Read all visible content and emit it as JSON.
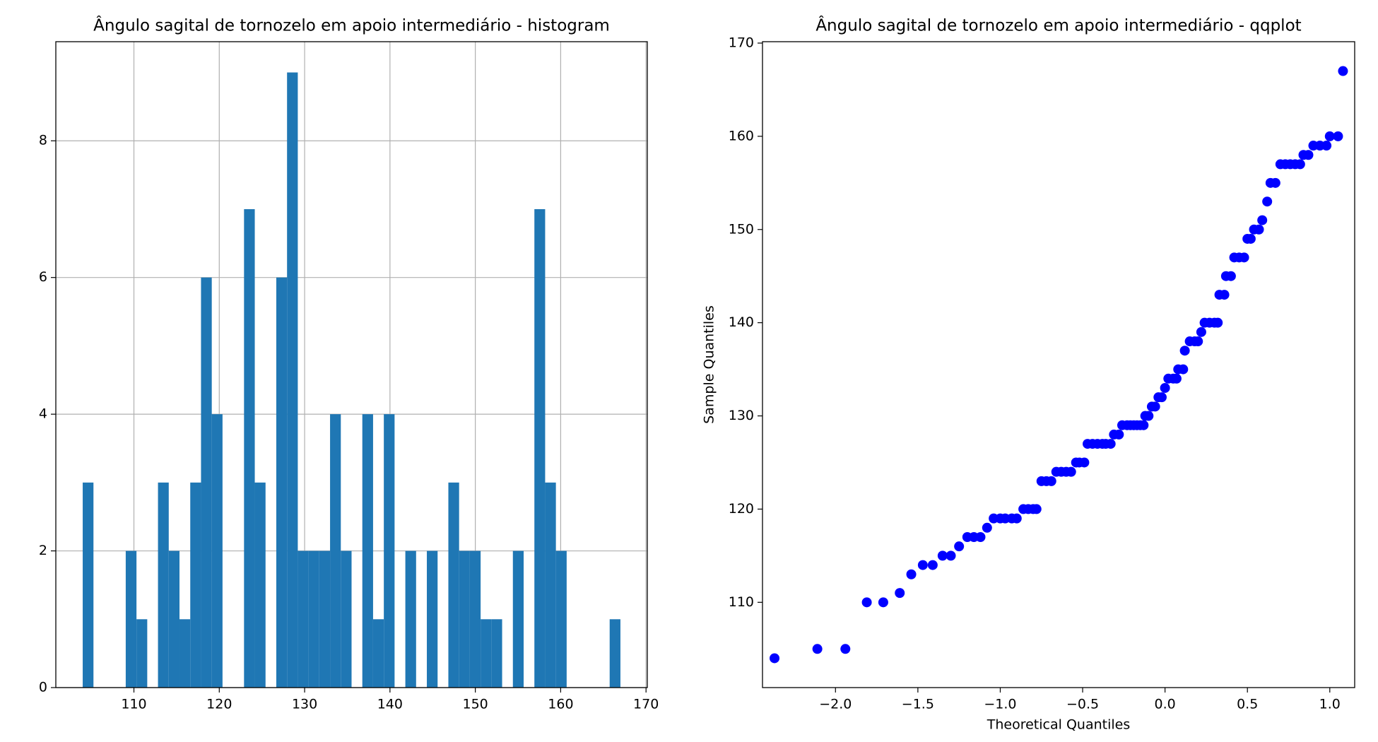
{
  "chart_data": [
    {
      "type": "histogram",
      "title": "Ângulo sagital de tornozelo em apoio intermediário - histogram",
      "bins": [
        104,
        105.26,
        106.52,
        107.78,
        109.04,
        110.3,
        111.56,
        112.82,
        114.08,
        115.34,
        116.6,
        117.86,
        119.12,
        120.38,
        121.64,
        122.9,
        124.16,
        125.42,
        126.68,
        127.94,
        129.2,
        130.46,
        131.72,
        132.98,
        134.24,
        135.5,
        136.76,
        138.02,
        139.28,
        140.54,
        141.8,
        143.06,
        144.32,
        145.58,
        146.84,
        148.1,
        149.36,
        150.62,
        151.88,
        153.14,
        154.4,
        155.66,
        156.92,
        158.18,
        159.44,
        160.7,
        161.96,
        163.22,
        164.48,
        165.74,
        167
      ],
      "values": [
        3,
        0,
        0,
        0,
        2,
        1,
        0,
        3,
        2,
        1,
        3,
        6,
        4,
        0,
        0,
        7,
        3,
        0,
        6,
        9,
        2,
        2,
        2,
        4,
        2,
        0,
        4,
        1,
        4,
        0,
        2,
        0,
        2,
        0,
        3,
        2,
        2,
        1,
        1,
        0,
        2,
        0,
        7,
        3,
        2,
        0,
        0,
        0,
        0,
        1
      ],
      "color": "#1f77b4",
      "xlim": [
        100.85,
        170.15
      ],
      "ylim": [
        0,
        9.45
      ],
      "xticks": [
        110,
        120,
        130,
        140,
        150,
        160,
        170
      ],
      "yticks": [
        0,
        2,
        4,
        6,
        8
      ],
      "grid": true
    },
    {
      "type": "scatter",
      "title": "Ângulo sagital de tornozelo em apoio intermediário - qqplot",
      "x_label": "Theoretical Quantiles",
      "y_label": "Sample Quantiles",
      "x": [
        -2.37,
        -2.11,
        -1.94,
        -1.81,
        -1.71,
        -1.61,
        -1.54,
        -1.47,
        -1.41,
        -1.35,
        -1.3,
        -1.25,
        -1.2,
        -1.16,
        -1.12,
        -1.08,
        -1.04,
        -1.0,
        -0.97,
        -0.93,
        -0.9,
        -0.86,
        -0.83,
        -0.8,
        -0.78,
        -0.75,
        -0.72,
        -0.69,
        -0.66,
        -0.63,
        -0.6,
        -0.57,
        -0.54,
        -0.52,
        -0.49,
        -0.47,
        -0.44,
        -0.41,
        -0.38,
        -0.36,
        -0.33,
        -0.31,
        -0.28,
        -0.26,
        -0.23,
        -0.21,
        -0.19,
        -0.17,
        -0.15,
        -0.13,
        -0.12,
        -0.1,
        -0.08,
        -0.06,
        -0.04,
        -0.02,
        0.0,
        0.02,
        0.05,
        0.07,
        0.08,
        0.11,
        0.12,
        0.15,
        0.18,
        0.2,
        0.22,
        0.24,
        0.27,
        0.3,
        0.32,
        0.33,
        0.36,
        0.37,
        0.4,
        0.42,
        0.45,
        0.48,
        0.5,
        0.52,
        0.54,
        0.57,
        0.59,
        0.62,
        0.64,
        0.67,
        0.7,
        0.73,
        0.76,
        0.79,
        0.82,
        0.84,
        0.87,
        0.9,
        0.94,
        0.98,
        1.0,
        1.05,
        1.08
      ],
      "y": [
        104,
        105,
        105,
        110,
        110,
        111,
        113,
        114,
        114,
        115,
        115,
        116,
        117,
        117,
        117,
        118,
        119,
        119,
        119,
        119,
        119,
        120,
        120,
        120,
        120,
        123,
        123,
        123,
        124,
        124,
        124,
        124,
        125,
        125,
        125,
        127,
        127,
        127,
        127,
        127,
        127,
        128,
        128,
        129,
        129,
        129,
        129,
        129,
        129,
        129,
        130,
        130,
        131,
        131,
        132,
        132,
        133,
        134,
        134,
        134,
        135,
        135,
        137,
        138,
        138,
        138,
        139,
        140,
        140,
        140,
        140,
        143,
        143,
        145,
        145,
        147,
        147,
        147,
        149,
        149,
        150,
        150,
        151,
        153,
        155,
        155,
        157,
        157,
        157,
        157,
        157,
        158,
        158,
        159,
        159,
        159,
        160,
        160,
        167
      ],
      "color": "#0000ff",
      "xlim": [
        -2.443,
        1.151
      ],
      "ylim": [
        100.85,
        170.15
      ],
      "xticks": [
        {
          "value": -2,
          "label": "−2.0"
        },
        {
          "value": -1.5,
          "label": "−1.5"
        },
        {
          "value": -1,
          "label": "−1.0"
        },
        {
          "value": -0.5,
          "label": "−0.5"
        },
        {
          "value": 0,
          "label": "0.0"
        },
        {
          "value": 0.5,
          "label": "0.5"
        },
        {
          "value": 1,
          "label": "1.0"
        }
      ],
      "yticks": [
        110,
        120,
        130,
        140,
        150,
        160,
        170
      ],
      "grid": false
    }
  ]
}
